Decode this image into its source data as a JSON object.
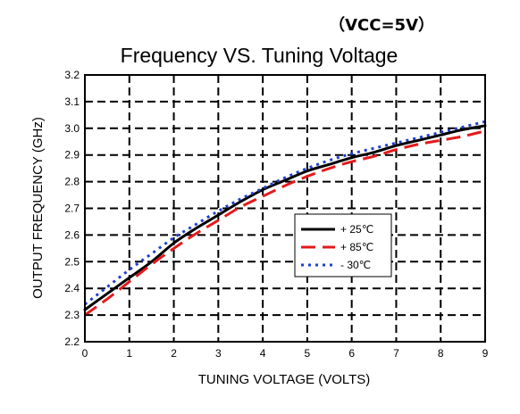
{
  "chart_data": {
    "type": "line",
    "title": "Frequency VS. Tuning Voltage",
    "subtitle": "（VCC=5V）",
    "xlabel": "TUNING VOLTAGE (VOLTS)",
    "ylabel": "OUTPUT FREQUENCY (GHz)",
    "xlim": [
      0,
      9
    ],
    "ylim": [
      2.2,
      3.2
    ],
    "xticks": [
      0,
      1,
      2,
      3,
      4,
      5,
      6,
      7,
      8,
      9
    ],
    "xtick_labels": [
      "0",
      "1",
      "2",
      "3",
      "4",
      "5",
      "6",
      "7",
      "8",
      "9"
    ],
    "yticks": [
      2.2,
      2.3,
      2.4,
      2.5,
      2.6,
      2.7,
      2.8,
      2.9,
      3.0,
      3.1,
      3.2
    ],
    "ytick_labels": [
      "2.2",
      "2.3",
      "2.4",
      "2.5",
      "2.6",
      "2.7",
      "2.8",
      "2.9",
      "3.0",
      "3.1",
      "3.2"
    ],
    "grid": true,
    "legend_position": "center-right",
    "x": [
      0,
      0.5,
      1,
      1.5,
      2,
      2.5,
      3,
      3.5,
      4,
      4.5,
      5,
      5.5,
      6,
      6.5,
      7,
      7.5,
      8,
      8.5,
      9
    ],
    "series": [
      {
        "name": "+ 25℃",
        "color": "#000000",
        "style": "solid",
        "values": [
          2.32,
          2.38,
          2.44,
          2.5,
          2.57,
          2.625,
          2.675,
          2.725,
          2.77,
          2.805,
          2.84,
          2.865,
          2.89,
          2.91,
          2.935,
          2.955,
          2.975,
          2.995,
          3.01
        ]
      },
      {
        "name": "+ 85℃",
        "color": "#e31a1c",
        "style": "dashed",
        "values": [
          2.3,
          2.36,
          2.425,
          2.49,
          2.55,
          2.605,
          2.655,
          2.705,
          2.745,
          2.785,
          2.82,
          2.85,
          2.875,
          2.895,
          2.92,
          2.94,
          2.955,
          2.97,
          2.99
        ]
      },
      {
        "name": "- 30℃",
        "color": "#1f3fd1",
        "style": "dotted",
        "values": [
          2.34,
          2.405,
          2.47,
          2.53,
          2.59,
          2.64,
          2.69,
          2.735,
          2.775,
          2.815,
          2.85,
          2.88,
          2.905,
          2.925,
          2.945,
          2.965,
          2.985,
          3.005,
          3.025
        ]
      }
    ]
  }
}
